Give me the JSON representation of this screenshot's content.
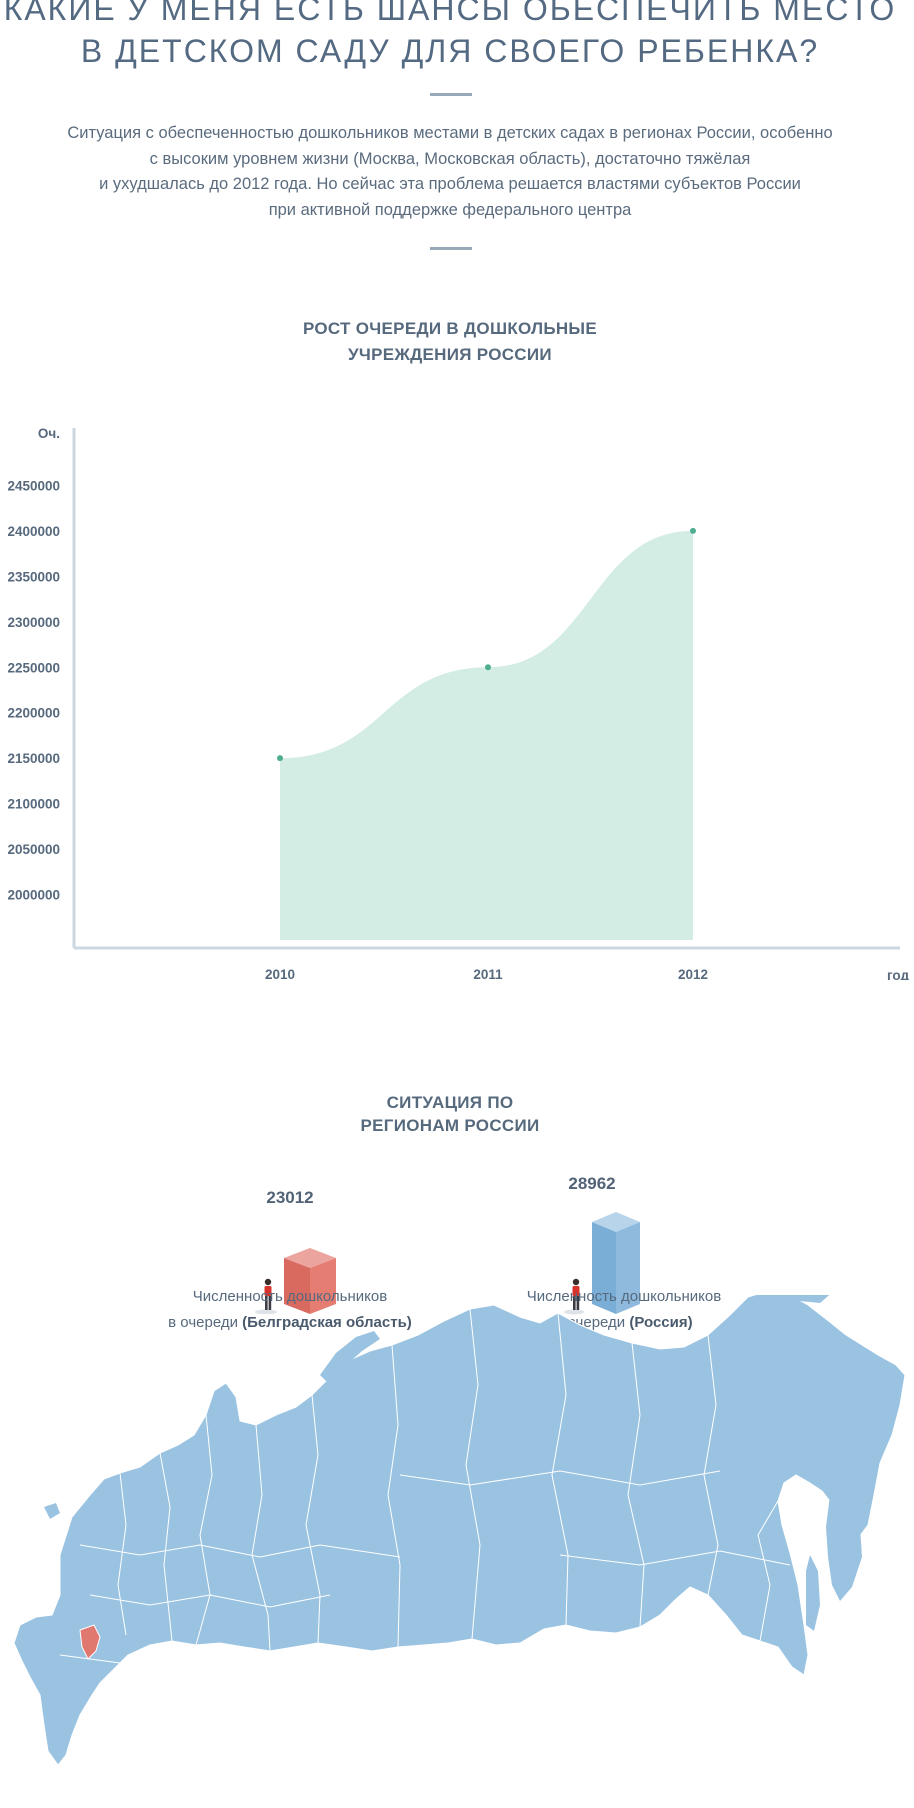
{
  "header": {
    "title_line1": "КАКИЕ У МЕНЯ ЕСТЬ ШАНСЫ ОБЕСПЕЧИТЬ МЕСТО",
    "title_line2": "В ДЕТСКОМ САДУ ДЛЯ СВОЕГО РЕБЕНКА?"
  },
  "intro": {
    "line1": "Ситуация с обеспеченностью дошкольников местами в детских садах в регионах России, особенно",
    "line2": "с высоким уровнем жизни (Москва, Московская область), достаточно тяжёлая",
    "line3": "и ухудшалась до 2012 года. Но сейчас эта проблема решается властями субъектов России",
    "line4": "при активной поддержке федерального центра"
  },
  "chart_section": {
    "title_line1": "РОСТ ОЧЕРЕДИ В ДОШКОЛЬНЫЕ",
    "title_line2": "УЧРЕЖДЕНИЯ РОССИИ"
  },
  "chart_data": {
    "type": "area",
    "title": "РОСТ ОЧЕРЕДИ В ДОШКОЛЬНЫЕ УЧРЕЖДЕНИЯ РОССИИ",
    "xlabel": "год",
    "ylabel": "Оч.",
    "x": [
      "2010",
      "2011",
      "2012"
    ],
    "series": [
      {
        "values": [
          2150000,
          2250000,
          2400000
        ]
      }
    ],
    "yticks": [
      2000000,
      2050000,
      2100000,
      2150000,
      2200000,
      2250000,
      2300000,
      2350000,
      2400000,
      2450000
    ],
    "ylim": [
      1950000,
      2500000
    ],
    "grid": false,
    "legend": "none",
    "fill_color": "#d3ece4",
    "point_color": "#4fae91",
    "axis_color": "#cbd8e1"
  },
  "regions_section": {
    "title_line1": "СИТУАЦИЯ ПО",
    "title_line2": "РЕГИОНАМ РОССИИ"
  },
  "stats": {
    "region": {
      "value": "23012",
      "caption_line1": "Численность дошкольников",
      "caption_prefix": "в очереди ",
      "caption_bold": "(Белградская область)",
      "color": "#e0786f"
    },
    "country": {
      "value": "28962",
      "caption_line1": "Численность дошкольников",
      "caption_prefix": "в очереди ",
      "caption_bold": "(Россия)",
      "color": "#8cb9dc"
    }
  },
  "map": {
    "land_color": "#9ac3e2",
    "border_color": "#ffffff",
    "highlight_color": "#e0786f"
  }
}
